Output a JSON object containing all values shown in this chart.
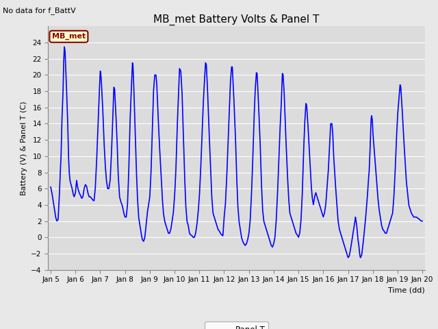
{
  "title": "MB_met Battery Volts & Panel T",
  "no_data_label": "No data for f_BattV",
  "ylabel": "Battery (V) & Panel T (C)",
  "xlabel": "Time (dd)",
  "ylim": [
    -4,
    26
  ],
  "yticks": [
    -4,
    -2,
    0,
    2,
    4,
    6,
    8,
    10,
    12,
    14,
    16,
    18,
    20,
    22,
    24
  ],
  "xlim": [
    4.9,
    20.1
  ],
  "xtick_labels": [
    "Jan 5",
    "Jan 6",
    "Jan 7",
    "Jan 8",
    "Jan 9",
    "Jan 10",
    "Jan 11",
    "Jan 12",
    "Jan 13",
    "Jan 14",
    "Jan 15",
    "Jan 16",
    "Jan 17",
    "Jan 18",
    "Jan 19",
    "Jan 20"
  ],
  "xtick_positions": [
    5,
    6,
    7,
    8,
    9,
    10,
    11,
    12,
    13,
    14,
    15,
    16,
    17,
    18,
    19,
    20
  ],
  "line_color": "#0000FF",
  "line_width": 1.2,
  "legend_label": "Panel T",
  "mb_met_label": "MB_met",
  "mb_met_box_bg": "#FFFFCC",
  "mb_met_box_edge": "#8B0000",
  "mb_met_text_color": "#8B0000",
  "bg_color": "#E8E8E8",
  "plot_bg": "#DCDCDC",
  "grid_color": "#FFFFFF",
  "title_fontsize": 11,
  "axis_fontsize": 8,
  "tick_fontsize": 7.5,
  "control_points": [
    [
      5.0,
      6.2
    ],
    [
      5.05,
      5.5
    ],
    [
      5.1,
      4.5
    ],
    [
      5.15,
      3.5
    ],
    [
      5.2,
      2.5
    ],
    [
      5.25,
      2.0
    ],
    [
      5.3,
      2.2
    ],
    [
      5.35,
      5.0
    ],
    [
      5.38,
      7.5
    ],
    [
      5.42,
      10.0
    ],
    [
      5.45,
      14.0
    ],
    [
      5.5,
      18.0
    ],
    [
      5.52,
      21.0
    ],
    [
      5.55,
      23.5
    ],
    [
      5.58,
      23.0
    ],
    [
      5.62,
      20.0
    ],
    [
      5.68,
      15.0
    ],
    [
      5.72,
      10.0
    ],
    [
      5.75,
      8.0
    ],
    [
      5.78,
      7.0
    ],
    [
      5.82,
      6.5
    ],
    [
      5.85,
      6.2
    ],
    [
      5.88,
      5.8
    ],
    [
      5.92,
      5.2
    ],
    [
      5.95,
      5.0
    ],
    [
      6.0,
      5.5
    ],
    [
      6.03,
      6.5
    ],
    [
      6.05,
      7.0
    ],
    [
      6.07,
      6.5
    ],
    [
      6.1,
      6.0
    ],
    [
      6.15,
      5.5
    ],
    [
      6.2,
      5.2
    ],
    [
      6.25,
      4.8
    ],
    [
      6.3,
      5.0
    ],
    [
      6.35,
      6.0
    ],
    [
      6.4,
      6.5
    ],
    [
      6.45,
      6.3
    ],
    [
      6.5,
      5.5
    ],
    [
      6.55,
      5.0
    ],
    [
      6.6,
      5.0
    ],
    [
      6.65,
      4.8
    ],
    [
      6.7,
      4.6
    ],
    [
      6.75,
      4.5
    ],
    [
      6.8,
      6.0
    ],
    [
      6.85,
      9.0
    ],
    [
      6.9,
      13.0
    ],
    [
      6.95,
      17.0
    ],
    [
      7.0,
      20.5
    ],
    [
      7.02,
      20.3
    ],
    [
      7.05,
      19.0
    ],
    [
      7.1,
      16.0
    ],
    [
      7.15,
      12.0
    ],
    [
      7.2,
      9.0
    ],
    [
      7.25,
      7.0
    ],
    [
      7.3,
      6.0
    ],
    [
      7.35,
      6.0
    ],
    [
      7.4,
      7.0
    ],
    [
      7.45,
      10.0
    ],
    [
      7.5,
      14.0
    ],
    [
      7.55,
      18.5
    ],
    [
      7.58,
      18.3
    ],
    [
      7.62,
      16.0
    ],
    [
      7.68,
      12.0
    ],
    [
      7.72,
      8.0
    ],
    [
      7.78,
      5.0
    ],
    [
      7.82,
      4.5
    ],
    [
      7.88,
      4.0
    ],
    [
      7.92,
      3.5
    ],
    [
      7.95,
      3.0
    ],
    [
      8.0,
      2.5
    ],
    [
      8.05,
      2.5
    ],
    [
      8.1,
      4.0
    ],
    [
      8.15,
      8.0
    ],
    [
      8.2,
      14.0
    ],
    [
      8.25,
      18.0
    ],
    [
      8.3,
      21.5
    ],
    [
      8.32,
      21.3
    ],
    [
      8.35,
      19.0
    ],
    [
      8.4,
      14.0
    ],
    [
      8.45,
      9.0
    ],
    [
      8.5,
      5.0
    ],
    [
      8.55,
      2.5
    ],
    [
      8.6,
      1.5
    ],
    [
      8.65,
      0.5
    ],
    [
      8.7,
      -0.3
    ],
    [
      8.75,
      -0.5
    ],
    [
      8.8,
      0.0
    ],
    [
      8.85,
      1.5
    ],
    [
      8.9,
      3.0
    ],
    [
      8.95,
      4.0
    ],
    [
      9.0,
      5.0
    ],
    [
      9.05,
      8.0
    ],
    [
      9.1,
      13.0
    ],
    [
      9.15,
      18.0
    ],
    [
      9.2,
      20.0
    ],
    [
      9.25,
      20.0
    ],
    [
      9.28,
      19.0
    ],
    [
      9.32,
      16.0
    ],
    [
      9.38,
      12.0
    ],
    [
      9.45,
      8.0
    ],
    [
      9.5,
      5.0
    ],
    [
      9.55,
      3.0
    ],
    [
      9.6,
      2.0
    ],
    [
      9.65,
      1.5
    ],
    [
      9.7,
      1.0
    ],
    [
      9.75,
      0.5
    ],
    [
      9.8,
      0.5
    ],
    [
      9.85,
      1.0
    ],
    [
      9.9,
      2.0
    ],
    [
      9.95,
      3.0
    ],
    [
      10.0,
      5.0
    ],
    [
      10.05,
      8.0
    ],
    [
      10.1,
      13.0
    ],
    [
      10.15,
      17.0
    ],
    [
      10.2,
      20.8
    ],
    [
      10.25,
      20.5
    ],
    [
      10.3,
      18.0
    ],
    [
      10.35,
      13.0
    ],
    [
      10.4,
      8.0
    ],
    [
      10.45,
      4.0
    ],
    [
      10.5,
      2.0
    ],
    [
      10.55,
      1.5
    ],
    [
      10.6,
      0.5
    ],
    [
      10.65,
      0.3
    ],
    [
      10.7,
      0.2
    ],
    [
      10.75,
      0.0
    ],
    [
      10.8,
      0.0
    ],
    [
      10.85,
      0.5
    ],
    [
      10.9,
      1.5
    ],
    [
      10.95,
      3.0
    ],
    [
      11.0,
      5.0
    ],
    [
      11.05,
      8.0
    ],
    [
      11.1,
      12.0
    ],
    [
      11.15,
      16.0
    ],
    [
      11.2,
      19.0
    ],
    [
      11.25,
      21.5
    ],
    [
      11.28,
      21.3
    ],
    [
      11.32,
      19.0
    ],
    [
      11.38,
      14.0
    ],
    [
      11.45,
      9.0
    ],
    [
      11.5,
      5.0
    ],
    [
      11.55,
      3.0
    ],
    [
      11.6,
      2.5
    ],
    [
      11.65,
      2.0
    ],
    [
      11.7,
      1.5
    ],
    [
      11.75,
      1.0
    ],
    [
      11.8,
      0.8
    ],
    [
      11.85,
      0.5
    ],
    [
      11.9,
      0.3
    ],
    [
      11.95,
      0.2
    ],
    [
      12.0,
      2.5
    ],
    [
      12.05,
      4.0
    ],
    [
      12.1,
      7.0
    ],
    [
      12.15,
      11.0
    ],
    [
      12.2,
      15.0
    ],
    [
      12.25,
      19.0
    ],
    [
      12.3,
      21.0
    ],
    [
      12.33,
      21.0
    ],
    [
      12.38,
      18.0
    ],
    [
      12.45,
      13.0
    ],
    [
      12.5,
      8.0
    ],
    [
      12.55,
      4.0
    ],
    [
      12.6,
      2.0
    ],
    [
      12.65,
      1.0
    ],
    [
      12.7,
      0.0
    ],
    [
      12.75,
      -0.5
    ],
    [
      12.8,
      -0.8
    ],
    [
      12.85,
      -1.0
    ],
    [
      12.9,
      -0.8
    ],
    [
      12.95,
      -0.3
    ],
    [
      13.0,
      0.5
    ],
    [
      13.05,
      2.0
    ],
    [
      13.1,
      5.0
    ],
    [
      13.15,
      9.0
    ],
    [
      13.2,
      14.0
    ],
    [
      13.25,
      18.0
    ],
    [
      13.3,
      20.3
    ],
    [
      13.33,
      20.2
    ],
    [
      13.38,
      17.0
    ],
    [
      13.45,
      12.0
    ],
    [
      13.5,
      7.0
    ],
    [
      13.55,
      3.5
    ],
    [
      13.6,
      2.0
    ],
    [
      13.65,
      1.5
    ],
    [
      13.7,
      1.0
    ],
    [
      13.75,
      0.5
    ],
    [
      13.8,
      0.0
    ],
    [
      13.85,
      -0.5
    ],
    [
      13.9,
      -1.0
    ],
    [
      13.95,
      -1.2
    ],
    [
      14.0,
      -0.8
    ],
    [
      14.05,
      0.0
    ],
    [
      14.1,
      2.0
    ],
    [
      14.15,
      5.0
    ],
    [
      14.2,
      9.0
    ],
    [
      14.25,
      13.0
    ],
    [
      14.3,
      16.0
    ],
    [
      14.35,
      20.2
    ],
    [
      14.38,
      20.0
    ],
    [
      14.42,
      18.0
    ],
    [
      14.48,
      13.0
    ],
    [
      14.55,
      8.0
    ],
    [
      14.6,
      5.0
    ],
    [
      14.65,
      3.0
    ],
    [
      14.7,
      2.5
    ],
    [
      14.75,
      2.0
    ],
    [
      14.8,
      1.5
    ],
    [
      14.85,
      1.0
    ],
    [
      14.9,
      0.5
    ],
    [
      14.95,
      0.3
    ],
    [
      15.0,
      0.0
    ],
    [
      15.05,
      0.5
    ],
    [
      15.1,
      2.0
    ],
    [
      15.15,
      5.0
    ],
    [
      15.2,
      10.0
    ],
    [
      15.25,
      14.0
    ],
    [
      15.3,
      16.5
    ],
    [
      15.33,
      16.3
    ],
    [
      15.38,
      14.0
    ],
    [
      15.45,
      10.0
    ],
    [
      15.5,
      7.0
    ],
    [
      15.55,
      5.0
    ],
    [
      15.6,
      4.0
    ],
    [
      15.65,
      5.0
    ],
    [
      15.7,
      5.5
    ],
    [
      15.75,
      5.0
    ],
    [
      15.8,
      4.5
    ],
    [
      15.85,
      4.0
    ],
    [
      15.9,
      3.5
    ],
    [
      15.95,
      3.0
    ],
    [
      16.0,
      2.5
    ],
    [
      16.05,
      3.0
    ],
    [
      16.1,
      4.0
    ],
    [
      16.15,
      6.0
    ],
    [
      16.2,
      8.0
    ],
    [
      16.25,
      11.0
    ],
    [
      16.3,
      14.0
    ],
    [
      16.35,
      14.0
    ],
    [
      16.38,
      13.0
    ],
    [
      16.42,
      10.0
    ],
    [
      16.48,
      7.0
    ],
    [
      16.55,
      4.0
    ],
    [
      16.6,
      2.0
    ],
    [
      16.65,
      1.0
    ],
    [
      16.7,
      0.5
    ],
    [
      16.75,
      0.0
    ],
    [
      16.8,
      -0.5
    ],
    [
      16.85,
      -1.0
    ],
    [
      16.9,
      -1.5
    ],
    [
      16.95,
      -2.0
    ],
    [
      17.0,
      -2.5
    ],
    [
      17.05,
      -2.3
    ],
    [
      17.1,
      -1.5
    ],
    [
      17.15,
      -0.5
    ],
    [
      17.2,
      0.5
    ],
    [
      17.25,
      1.5
    ],
    [
      17.28,
      2.0
    ],
    [
      17.3,
      2.5
    ],
    [
      17.35,
      1.5
    ],
    [
      17.38,
      0.5
    ],
    [
      17.4,
      -0.3
    ],
    [
      17.43,
      -0.8
    ],
    [
      17.45,
      -1.5
    ],
    [
      17.48,
      -2.3
    ],
    [
      17.5,
      -2.5
    ],
    [
      17.55,
      -2.2
    ],
    [
      17.6,
      -1.0
    ],
    [
      17.65,
      0.5
    ],
    [
      17.7,
      2.0
    ],
    [
      17.75,
      4.0
    ],
    [
      17.78,
      5.0
    ],
    [
      17.8,
      6.0
    ],
    [
      17.82,
      7.0
    ],
    [
      17.85,
      8.0
    ],
    [
      17.88,
      10.0
    ],
    [
      17.9,
      12.0
    ],
    [
      17.93,
      14.5
    ],
    [
      17.95,
      15.0
    ],
    [
      17.98,
      14.5
    ],
    [
      18.0,
      13.0
    ],
    [
      18.05,
      11.0
    ],
    [
      18.1,
      9.0
    ],
    [
      18.15,
      7.0
    ],
    [
      18.2,
      5.0
    ],
    [
      18.25,
      3.5
    ],
    [
      18.3,
      2.5
    ],
    [
      18.35,
      1.5
    ],
    [
      18.4,
      1.0
    ],
    [
      18.45,
      0.8
    ],
    [
      18.5,
      0.5
    ],
    [
      18.55,
      0.5
    ],
    [
      18.6,
      1.0
    ],
    [
      18.65,
      1.5
    ],
    [
      18.7,
      2.0
    ],
    [
      18.75,
      2.5
    ],
    [
      18.8,
      3.0
    ],
    [
      18.85,
      5.0
    ],
    [
      18.9,
      8.0
    ],
    [
      18.95,
      12.0
    ],
    [
      19.0,
      15.0
    ],
    [
      19.05,
      17.0
    ],
    [
      19.1,
      18.8
    ],
    [
      19.13,
      18.5
    ],
    [
      19.18,
      16.0
    ],
    [
      19.25,
      12.0
    ],
    [
      19.35,
      7.0
    ],
    [
      19.45,
      4.0
    ],
    [
      19.55,
      3.0
    ],
    [
      19.65,
      2.5
    ],
    [
      19.75,
      2.5
    ],
    [
      19.85,
      2.3
    ],
    [
      19.95,
      2.0
    ],
    [
      20.0,
      2.0
    ]
  ]
}
